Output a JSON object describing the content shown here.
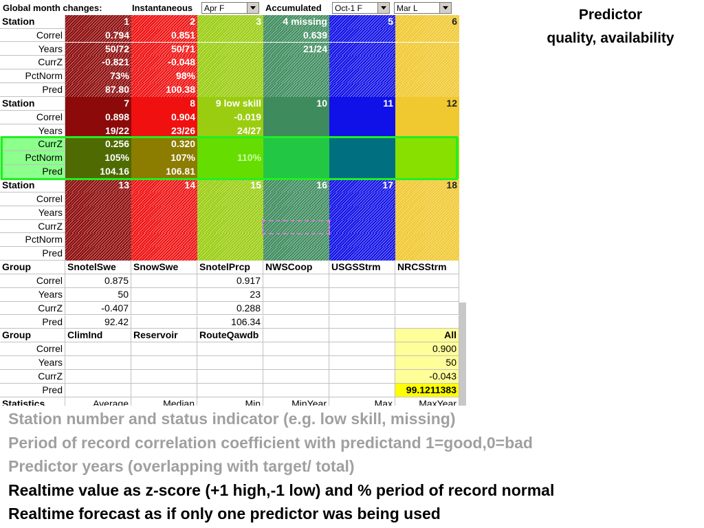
{
  "header": {
    "title": "Global month changes:",
    "mode1": "Instantaneous",
    "select1": "Apr F",
    "mode2": "Accumulated",
    "select2": "Oct-1 F",
    "select3": "Mar L"
  },
  "grid": [
    [
      "Station",
      "1",
      "2",
      "3",
      "4 missing",
      "5",
      "6"
    ],
    [
      "Correl",
      "0.794",
      "0.851",
      null,
      "0.639",
      null,
      null
    ],
    [
      "Years",
      "50/72",
      "50/71",
      null,
      "21/24",
      null,
      null
    ],
    [
      "CurrZ",
      "-0.821",
      "-0.048",
      null,
      null,
      null,
      null
    ],
    [
      "PctNorm",
      "73%",
      "98%",
      null,
      null,
      null,
      null
    ],
    [
      "Pred",
      "87.80",
      "100.38",
      null,
      null,
      null,
      null
    ],
    [
      "Station",
      "7",
      "8",
      "9 low skill",
      "10",
      "11",
      "12"
    ],
    [
      "Correl",
      "0.898",
      "0.904",
      "-0.019",
      null,
      null,
      null
    ],
    [
      "Years",
      "19/22",
      "23/26",
      "24/27",
      null,
      null,
      null
    ],
    [
      "CurrZ",
      "0.256",
      "0.320",
      null,
      null,
      null,
      null
    ],
    [
      "PctNorm",
      "105%",
      "107%",
      "110%",
      null,
      null,
      null
    ],
    [
      "Pred",
      "104.16",
      "106.81",
      null,
      null,
      null,
      null
    ],
    [
      "Station",
      "13",
      "14",
      "15",
      "16",
      "17",
      "18"
    ],
    [
      "Correl",
      null,
      null,
      null,
      null,
      null,
      null
    ],
    [
      "Years",
      null,
      null,
      null,
      null,
      null,
      null
    ],
    [
      "CurrZ",
      null,
      null,
      null,
      null,
      null,
      null
    ],
    [
      "PctNorm",
      null,
      null,
      null,
      null,
      null,
      null
    ],
    [
      "Pred",
      null,
      null,
      null,
      null,
      null,
      null
    ],
    [
      "Group",
      "SnotelSwe",
      "SnowSwe",
      "SnotelPrcp",
      "NWSCoop",
      "USGSStrm",
      "NRCSStrm"
    ],
    [
      "Correl",
      "0.875",
      null,
      "0.917",
      null,
      null,
      null
    ],
    [
      "Years",
      "50",
      null,
      "23",
      null,
      null,
      null
    ],
    [
      "CurrZ",
      "-0.407",
      null,
      "0.288",
      null,
      null,
      null
    ],
    [
      "Pred",
      "92.42",
      null,
      "106.34",
      null,
      null,
      null
    ],
    [
      "Group",
      "ClimInd",
      "Reservoir",
      "RouteQawdb",
      null,
      null,
      "All"
    ],
    [
      "Correl",
      null,
      null,
      null,
      null,
      null,
      "0.900"
    ],
    [
      "Years",
      null,
      null,
      null,
      null,
      null,
      "50"
    ],
    [
      "CurrZ",
      null,
      null,
      null,
      null,
      null,
      "-0.043"
    ],
    [
      "Pred",
      null,
      null,
      null,
      null,
      null,
      "99.1211383"
    ],
    [
      "Statistics",
      "Average",
      "Median",
      "Min",
      "MinYear",
      "Max",
      "MaxYear"
    ]
  ],
  "side_title": [
    "Predictor",
    "quality, availability"
  ],
  "notes": [
    "Station number and status indicator (e.g. low skill, missing)",
    "Period of record correlation coefficient with predictand 1=good,0=bad",
    "Predictor years (overlapping with target/ total)",
    "Realtime value as z-score (+1 high,-1 low) and % period of record normal",
    "Realtime forecast as if only one predictor was being used"
  ]
}
